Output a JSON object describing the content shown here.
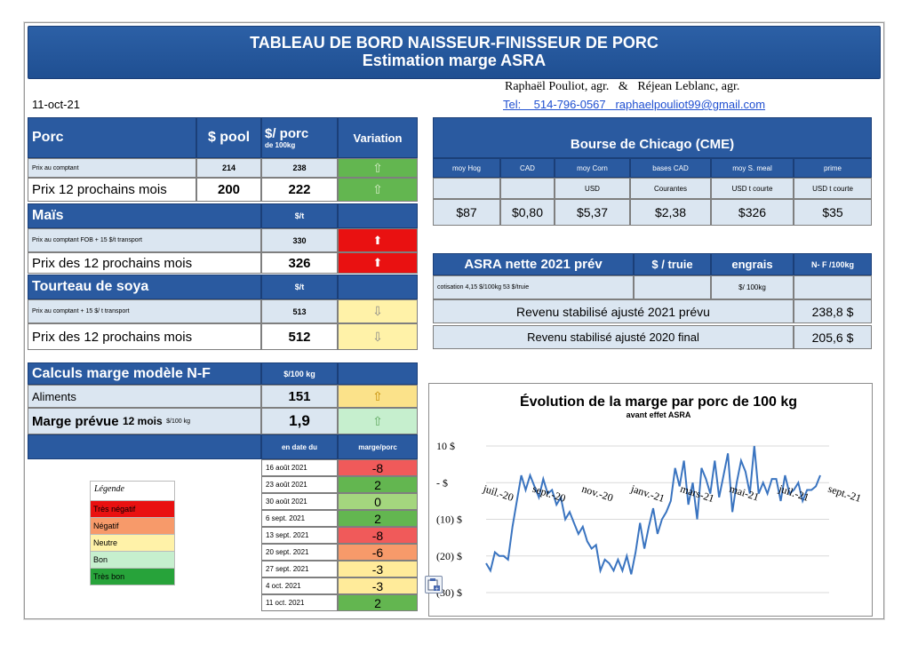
{
  "title": "TABLEAU DE BORD NAISSEUR-FINISSEUR DE PORC",
  "subtitle": "Estimation marge ASRA",
  "date": "11-oct-21",
  "authors": "Raphaël Pouliot, agr.   &   Réjean Leblanc, agr.",
  "contact": "Tel:    514-796-0567   raphaelpouliot99@gmail.com",
  "porc": {
    "header": "Porc",
    "pool_header": "$ pool",
    "perporc_header": "$/ porc",
    "perporc_sub": "de 100kg",
    "variation_header": "Variation",
    "rows": [
      {
        "label": "Prix au comptant",
        "pool": "214",
        "porc": "238",
        "arrow": "⇧"
      },
      {
        "label": "Prix 12 prochains mois",
        "pool": "200",
        "porc": "222",
        "arrow": "⇧"
      }
    ]
  },
  "mais": {
    "header": "Maïs",
    "unit": "$/t",
    "rows": [
      {
        "label": "Prix au comptant  FOB + 15 $/t transport",
        "value": "330",
        "arrow": "⬆"
      },
      {
        "label": "Prix des 12 prochains mois",
        "value": "326",
        "arrow": "⬆"
      }
    ]
  },
  "soya": {
    "header": "Tourteau de soya",
    "unit": "$/t",
    "rows": [
      {
        "label": "Prix au comptant  + 15 $/ t  transport",
        "value": "513",
        "arrow": "⇩"
      },
      {
        "label": "Prix des 12 prochains mois",
        "value": "512",
        "arrow": "⇩"
      }
    ]
  },
  "calculs": {
    "header": "Calculs marge  modèle N-F",
    "unit": "$/100 kg",
    "aliments_label": "Aliments",
    "aliments_value": "151",
    "aliments_arrow": "⇧",
    "marge_label": "Marge prévue",
    "marge_label2": "12 mois",
    "marge_label3": "$/100 kg",
    "marge_value": "1,9",
    "marge_arrow": "⇧",
    "date_header": "en date du",
    "marge_header": "marge/porc",
    "history": [
      {
        "date": "16 août 2021",
        "value": "-8",
        "color": "#f05a5a"
      },
      {
        "date": "23 août 2021",
        "value": "2",
        "color": "#63b650"
      },
      {
        "date": "30 août 2021",
        "value": "0",
        "color": "#a4d67e"
      },
      {
        "date": "6 sept. 2021",
        "value": "2",
        "color": "#63b650"
      },
      {
        "date": "13 sept. 2021",
        "value": "-8",
        "color": "#f05a5a"
      },
      {
        "date": "20 sept. 2021",
        "value": "-6",
        "color": "#f79a6a"
      },
      {
        "date": "27 sept. 2021",
        "value": "-3",
        "color": "#ffeb9a"
      },
      {
        "date": "4 oct. 2021",
        "value": "-3",
        "color": "#ffeb9a"
      },
      {
        "date": "11 oct. 2021",
        "value": "2",
        "color": "#63b650"
      }
    ]
  },
  "legend": {
    "title": "Légende",
    "items": [
      {
        "label": "Très négatif",
        "color": "#e91111"
      },
      {
        "label": "Négatif",
        "color": "#f79a6a"
      },
      {
        "label": "Neutre",
        "color": "#fff2a8"
      },
      {
        "label": "Bon",
        "color": "#c6efce"
      },
      {
        "label": "Très bon",
        "color": "#27a33a"
      }
    ]
  },
  "chicago": {
    "header": "Bourse de Chicago (CME)",
    "cols": [
      "moy Hog",
      "CAD",
      "moy Corn",
      "bases CAD",
      "moy S. meal",
      "prime"
    ],
    "subs": [
      "",
      "",
      "USD",
      "Courantes",
      "USD t courte",
      "USD t courte"
    ],
    "values": [
      "$87",
      "$0,80",
      "$5,37",
      "$2,38",
      "$326",
      "$35"
    ]
  },
  "asra": {
    "header": "ASRA nette 2021 prév",
    "truie_header": "$ / truie",
    "engrais_header": "engrais",
    "nf_header": "N- F /100kg",
    "cotisation_label": "cotisation 4,15 $/100kg  53 $/truie",
    "engrais_unit": "$/ 100kg",
    "row1_label": "Revenu stabilisé ajusté 2021 prévu",
    "row1_value": "238,8 $",
    "row2_label": "Revenu stabilisé ajusté 2020 final",
    "row2_value": "205,6 $"
  },
  "chart_data": {
    "type": "line",
    "title": "Évolution de la marge par porc de 100 kg",
    "subtitle": "avant effet ASRA",
    "xlabel": "",
    "ylabel": "",
    "ylim": [
      -30,
      10
    ],
    "yticks": [
      "10 $",
      "- $",
      "(10) $",
      "(20) $",
      "(30) $"
    ],
    "ytick_values": [
      10,
      0,
      -10,
      -20,
      -30
    ],
    "xticks": [
      "juil.-20",
      "sept.-20",
      "nov.-20",
      "janv.-21",
      "mars-21",
      "mai-21",
      "juil.-21",
      "sept.-21"
    ],
    "line_color": "#3a74c0",
    "values": [
      -22,
      -24,
      -19,
      -20,
      -20,
      -21,
      -12,
      -5,
      2,
      -2,
      2,
      -1,
      -4,
      1,
      -3,
      -2,
      -6,
      -4,
      -10,
      -8,
      -11,
      -14,
      -12,
      -16,
      -18,
      -17,
      -24,
      -21,
      -22,
      -24,
      -21,
      -24,
      -20,
      -25,
      -19,
      -11,
      -18,
      -12,
      -7,
      -14,
      -10,
      -8,
      -5,
      4,
      -1,
      6,
      -6,
      0,
      -10,
      4,
      1,
      -3,
      6,
      -4,
      2,
      8,
      -8,
      0,
      6,
      3,
      -3,
      10,
      -3,
      0,
      -3,
      1,
      1,
      -5,
      2,
      -3,
      -2,
      0,
      -5,
      -2,
      -2,
      -1,
      2
    ]
  },
  "icon": "paste-options-icon"
}
